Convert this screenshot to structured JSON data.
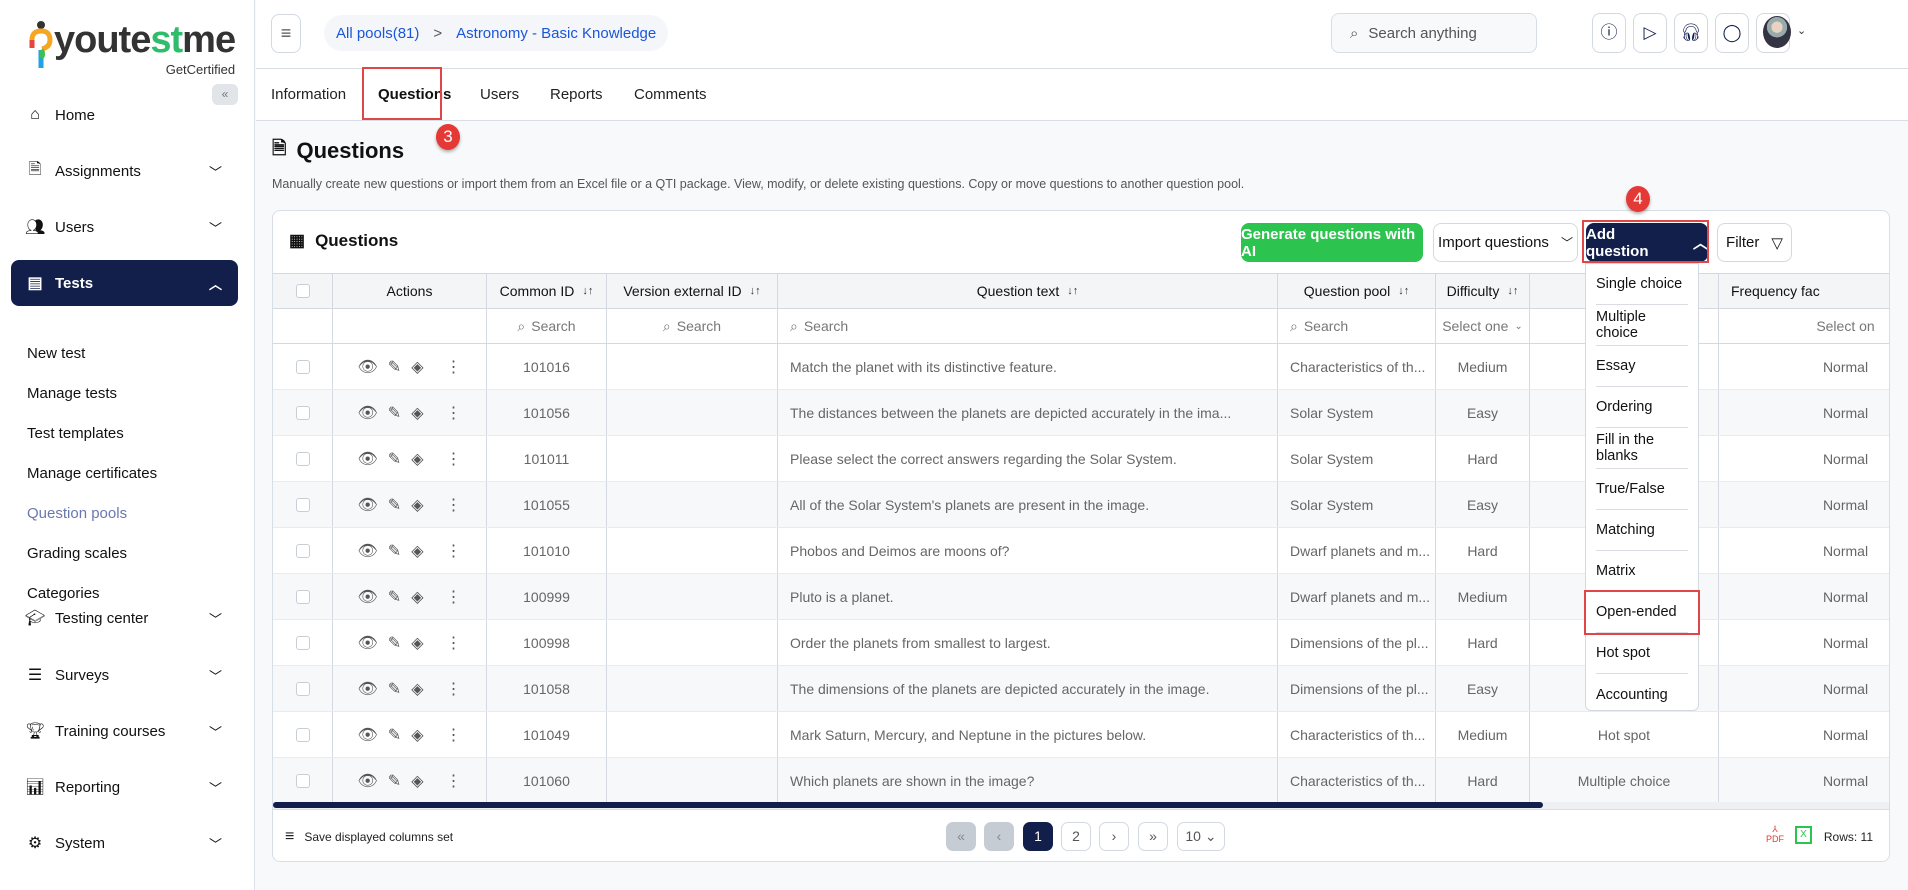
{
  "logo": {
    "word_a": "youte",
    "word_b": "st",
    "word_c": "me",
    "sub": "GetCertified"
  },
  "sidebar": {
    "collapse_icon": "double-chevron-left",
    "items": [
      {
        "label": "Home",
        "icon": "home-icon",
        "chevron": false
      },
      {
        "label": "Assignments",
        "icon": "document-icon",
        "chevron": true
      },
      {
        "label": "Users",
        "icon": "users-icon",
        "chevron": true
      },
      {
        "label": "Tests",
        "icon": "test-icon",
        "chevron": true,
        "active": true
      },
      {
        "label": "Testing center",
        "icon": "graduation-cap-icon",
        "chevron": true
      },
      {
        "label": "Surveys",
        "icon": "list-icon",
        "chevron": true
      },
      {
        "label": "Training courses",
        "icon": "trophy-icon",
        "chevron": true
      },
      {
        "label": "Reporting",
        "icon": "report-icon",
        "chevron": true
      },
      {
        "label": "System",
        "icon": "gear-icon",
        "chevron": true
      }
    ],
    "sub_items": [
      "New test",
      "Manage tests",
      "Test templates",
      "Manage certificates",
      "Question pools",
      "Grading scales",
      "Categories"
    ],
    "current_sub": "Question pools"
  },
  "header": {
    "breadcrumb": [
      "All pools(81)",
      "Astronomy - Basic Knowledge"
    ],
    "breadcrumb_sep": ">",
    "search_placeholder": "Search anything",
    "icons": [
      "help-icon",
      "play-icon",
      "headset-icon",
      "chat-icon",
      "bell-icon"
    ]
  },
  "tabs": [
    "Information",
    "Questions",
    "Users",
    "Reports",
    "Comments"
  ],
  "active_tab": "Questions",
  "annotations": {
    "step3": "3",
    "step4": "4",
    "highlight_color": "#e04646"
  },
  "page": {
    "title": "Questions",
    "description": "Manually create new questions or import them from an Excel file or a QTI package. View, modify, or delete existing questions. Copy or move questions to another question pool."
  },
  "card": {
    "title": "Questions",
    "generate_ai": "Generate questions with AI",
    "import": "Import questions",
    "add": "Add question",
    "filter": "Filter"
  },
  "table": {
    "columns": [
      "",
      "Actions",
      "Common ID",
      "Version external ID",
      "Question text",
      "Question pool",
      "Difficulty",
      "",
      "Frequency fac"
    ],
    "filters": {
      "search": "Search",
      "select": "Select one",
      "select_trunc": "Select on"
    },
    "rows": [
      {
        "id": "101016",
        "ext": "",
        "text": "Match the planet with its distinctive feature.",
        "pool": "Characteristics of th...",
        "difficulty": "Medium",
        "type": "",
        "freq": "Normal"
      },
      {
        "id": "101056",
        "ext": "",
        "text": "The distances between the planets are depicted accurately in the ima...",
        "pool": "Solar System",
        "difficulty": "Easy",
        "type": "",
        "freq": "Normal"
      },
      {
        "id": "101011",
        "ext": "",
        "text": "Please select the correct answers regarding the Solar System.",
        "pool": "Solar System",
        "difficulty": "Hard",
        "type": "",
        "freq": "Normal"
      },
      {
        "id": "101055",
        "ext": "",
        "text": "All of the Solar System's planets are present in the image.",
        "pool": "Solar System",
        "difficulty": "Easy",
        "type": "",
        "freq": "Normal"
      },
      {
        "id": "101010",
        "ext": "",
        "text": "Phobos and Deimos are moons of?",
        "pool": "Dwarf planets and m...",
        "difficulty": "Hard",
        "type": "",
        "freq": "Normal"
      },
      {
        "id": "100999",
        "ext": "",
        "text": "Pluto is a planet.",
        "pool": "Dwarf planets and m...",
        "difficulty": "Medium",
        "type": "",
        "freq": "Normal"
      },
      {
        "id": "100998",
        "ext": "",
        "text": "Order the planets from smallest to largest.",
        "pool": "Dimensions of the pl...",
        "difficulty": "Hard",
        "type": "",
        "freq": "Normal"
      },
      {
        "id": "101058",
        "ext": "",
        "text": "The dimensions of the planets are depicted accurately in the image.",
        "pool": "Dimensions of the pl...",
        "difficulty": "Easy",
        "type": "",
        "freq": "Normal"
      },
      {
        "id": "101049",
        "ext": "",
        "text": "Mark Saturn, Mercury, and Neptune in the pictures below.",
        "pool": "Characteristics of th...",
        "difficulty": "Medium",
        "type": "Hot spot",
        "freq": "Normal"
      },
      {
        "id": "101060",
        "ext": "",
        "text": "Which planets are shown in the image?",
        "pool": "Characteristics of th...",
        "difficulty": "Hard",
        "type": "Multiple choice",
        "freq": "Normal"
      }
    ]
  },
  "dropdown": {
    "items": [
      "Single choice",
      "Multiple choice",
      "Essay",
      "Ordering",
      "Fill in the blanks",
      "True/False",
      "Matching",
      "Matrix",
      "Open-ended",
      "Hot spot",
      "Accounting"
    ],
    "highlighted": "Open-ended"
  },
  "footer": {
    "save_columns": "Save displayed columns set",
    "pages": [
      "1",
      "2"
    ],
    "current_page": "1",
    "page_size": "10",
    "rows": "Rows: 11",
    "pdf": "PDF"
  }
}
